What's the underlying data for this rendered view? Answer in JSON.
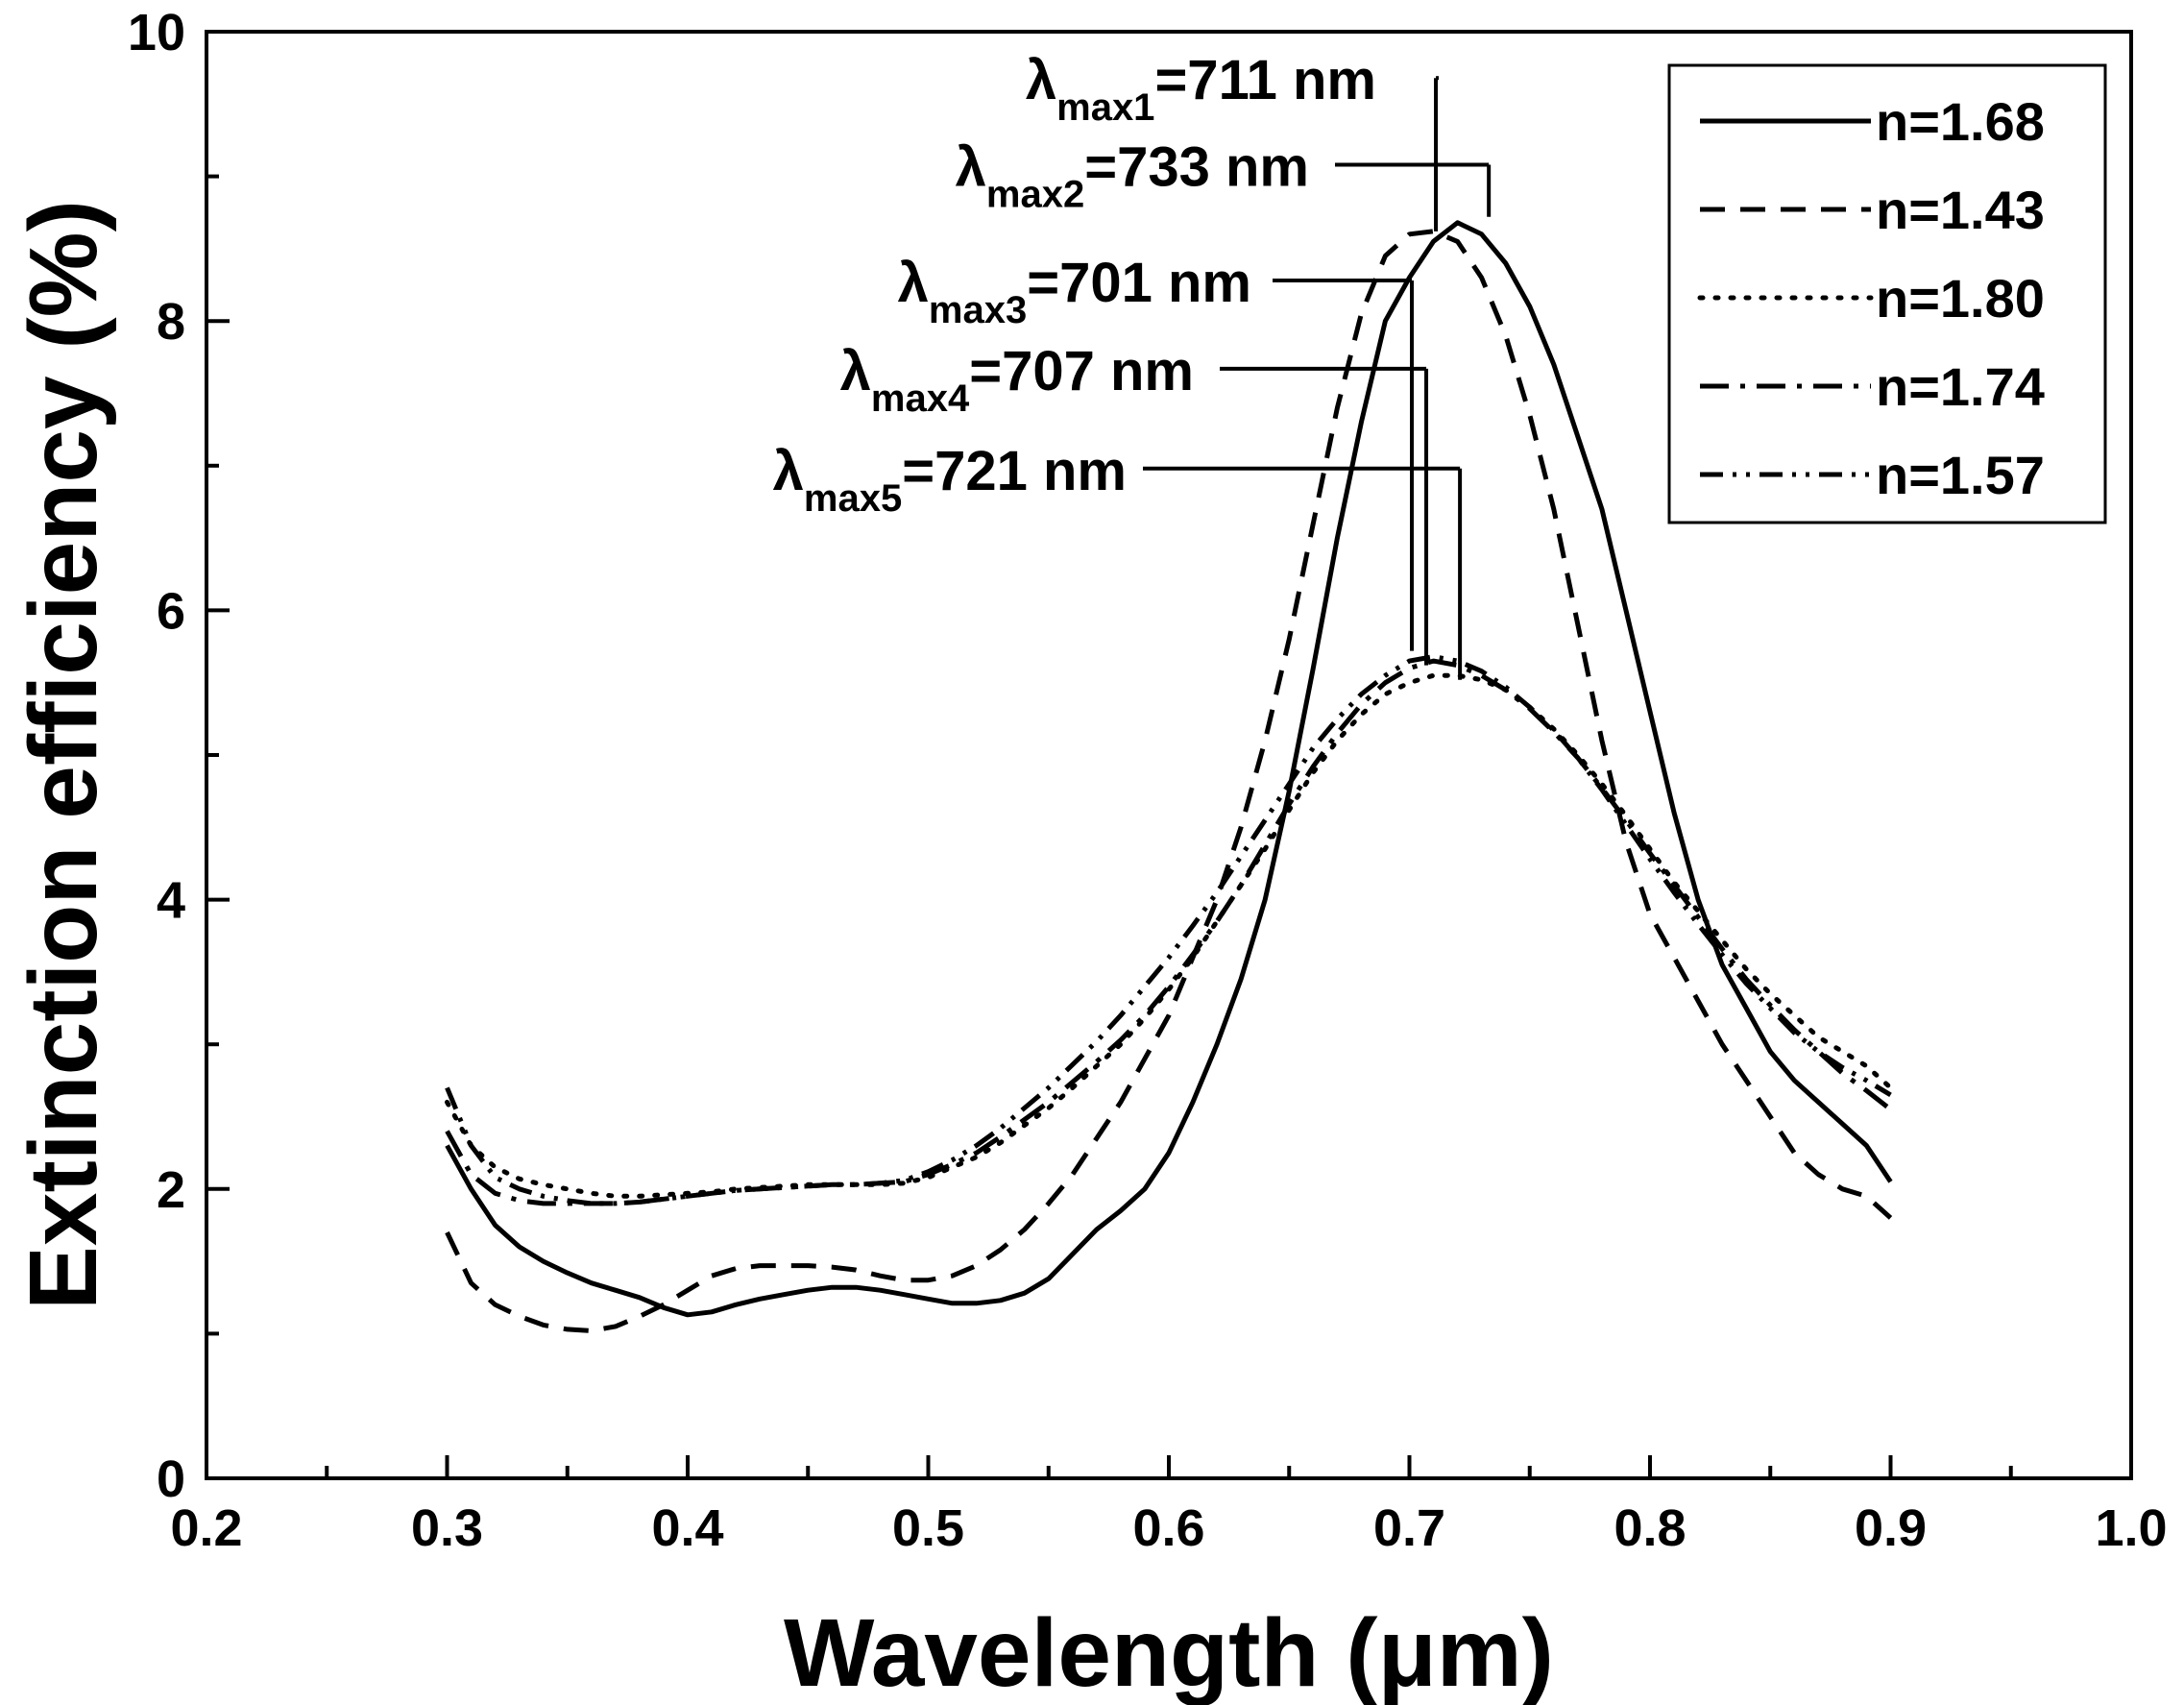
{
  "chart_data": {
    "type": "line",
    "xlabel": "Wavelength (μm)",
    "ylabel": "Extinction efficiency (%)",
    "xlim": [
      0.2,
      1.0
    ],
    "ylim": [
      0,
      10
    ],
    "xticks": [
      "0.2",
      "0.3",
      "0.4",
      "0.5",
      "0.6",
      "0.7",
      "0.8",
      "0.9",
      "1.0"
    ],
    "yticks": [
      "0",
      "2",
      "4",
      "6",
      "8",
      "10"
    ],
    "grid": false,
    "legend_position": "top-right",
    "series": [
      {
        "name": "n=1.68",
        "style": "solid",
        "x": [
          0.3,
          0.31,
          0.32,
          0.33,
          0.34,
          0.35,
          0.36,
          0.37,
          0.38,
          0.39,
          0.4,
          0.41,
          0.42,
          0.43,
          0.44,
          0.45,
          0.46,
          0.47,
          0.48,
          0.49,
          0.5,
          0.51,
          0.52,
          0.53,
          0.54,
          0.55,
          0.56,
          0.57,
          0.58,
          0.59,
          0.6,
          0.61,
          0.62,
          0.63,
          0.64,
          0.65,
          0.66,
          0.67,
          0.68,
          0.69,
          0.7,
          0.71,
          0.72,
          0.73,
          0.74,
          0.75,
          0.76,
          0.77,
          0.78,
          0.79,
          0.8,
          0.81,
          0.82,
          0.83,
          0.84,
          0.85,
          0.86,
          0.87,
          0.88,
          0.89,
          0.9
        ],
        "y": [
          2.3,
          2.0,
          1.75,
          1.6,
          1.5,
          1.42,
          1.35,
          1.3,
          1.25,
          1.18,
          1.13,
          1.15,
          1.2,
          1.24,
          1.27,
          1.3,
          1.32,
          1.32,
          1.3,
          1.27,
          1.24,
          1.21,
          1.21,
          1.23,
          1.28,
          1.38,
          1.55,
          1.72,
          1.85,
          2.0,
          2.25,
          2.6,
          3.0,
          3.45,
          4.0,
          4.75,
          5.6,
          6.5,
          7.3,
          8.0,
          8.3,
          8.55,
          8.68,
          8.6,
          8.4,
          8.1,
          7.7,
          7.2,
          6.7,
          6.0,
          5.3,
          4.6,
          4.0,
          3.55,
          3.25,
          2.95,
          2.75,
          2.6,
          2.45,
          2.3,
          2.05
        ]
      },
      {
        "name": "n=1.43",
        "style": "dashed",
        "x": [
          0.3,
          0.31,
          0.32,
          0.33,
          0.34,
          0.35,
          0.36,
          0.37,
          0.38,
          0.39,
          0.4,
          0.41,
          0.42,
          0.43,
          0.44,
          0.45,
          0.46,
          0.47,
          0.48,
          0.49,
          0.5,
          0.51,
          0.52,
          0.53,
          0.54,
          0.55,
          0.56,
          0.57,
          0.58,
          0.59,
          0.6,
          0.61,
          0.62,
          0.63,
          0.64,
          0.65,
          0.66,
          0.67,
          0.68,
          0.69,
          0.7,
          0.71,
          0.72,
          0.73,
          0.74,
          0.75,
          0.76,
          0.77,
          0.78,
          0.79,
          0.8,
          0.81,
          0.82,
          0.83,
          0.84,
          0.85,
          0.86,
          0.87,
          0.88,
          0.89,
          0.9
        ],
        "y": [
          1.7,
          1.35,
          1.2,
          1.12,
          1.06,
          1.03,
          1.02,
          1.05,
          1.12,
          1.2,
          1.3,
          1.4,
          1.45,
          1.47,
          1.47,
          1.47,
          1.46,
          1.44,
          1.4,
          1.37,
          1.37,
          1.4,
          1.47,
          1.58,
          1.72,
          1.9,
          2.1,
          2.35,
          2.6,
          2.9,
          3.2,
          3.6,
          4.0,
          4.5,
          5.1,
          5.8,
          6.6,
          7.4,
          8.05,
          8.45,
          8.6,
          8.62,
          8.55,
          8.3,
          7.9,
          7.35,
          6.7,
          5.9,
          5.1,
          4.4,
          3.9,
          3.6,
          3.3,
          3.0,
          2.75,
          2.5,
          2.25,
          2.1,
          2.0,
          1.95,
          1.8
        ]
      },
      {
        "name": "n=1.80",
        "style": "dotted",
        "x": [
          0.3,
          0.31,
          0.32,
          0.33,
          0.34,
          0.35,
          0.36,
          0.37,
          0.38,
          0.39,
          0.4,
          0.41,
          0.42,
          0.43,
          0.44,
          0.45,
          0.46,
          0.47,
          0.48,
          0.49,
          0.5,
          0.51,
          0.52,
          0.53,
          0.54,
          0.55,
          0.56,
          0.57,
          0.58,
          0.59,
          0.6,
          0.61,
          0.62,
          0.63,
          0.64,
          0.65,
          0.66,
          0.67,
          0.68,
          0.69,
          0.7,
          0.71,
          0.72,
          0.73,
          0.74,
          0.75,
          0.76,
          0.77,
          0.78,
          0.79,
          0.8,
          0.81,
          0.82,
          0.83,
          0.84,
          0.85,
          0.86,
          0.87,
          0.88,
          0.89,
          0.9
        ],
        "y": [
          2.6,
          2.3,
          2.15,
          2.07,
          2.03,
          2.0,
          1.97,
          1.95,
          1.95,
          1.96,
          1.97,
          1.98,
          2.0,
          2.01,
          2.02,
          2.03,
          2.03,
          2.03,
          2.03,
          2.04,
          2.08,
          2.15,
          2.22,
          2.32,
          2.44,
          2.56,
          2.7,
          2.85,
          3.0,
          3.18,
          3.38,
          3.6,
          3.85,
          4.1,
          4.35,
          4.62,
          4.88,
          5.1,
          5.28,
          5.42,
          5.5,
          5.55,
          5.55,
          5.52,
          5.45,
          5.33,
          5.18,
          5.0,
          4.8,
          4.58,
          4.35,
          4.12,
          3.92,
          3.72,
          3.52,
          3.35,
          3.2,
          3.05,
          2.95,
          2.85,
          2.7
        ]
      },
      {
        "name": "n=1.74",
        "style": "dashdot",
        "x": [
          0.3,
          0.31,
          0.32,
          0.33,
          0.34,
          0.35,
          0.36,
          0.37,
          0.38,
          0.39,
          0.4,
          0.41,
          0.42,
          0.43,
          0.44,
          0.45,
          0.46,
          0.47,
          0.48,
          0.49,
          0.5,
          0.51,
          0.52,
          0.53,
          0.54,
          0.55,
          0.56,
          0.57,
          0.58,
          0.59,
          0.6,
          0.61,
          0.62,
          0.63,
          0.64,
          0.65,
          0.66,
          0.67,
          0.68,
          0.69,
          0.7,
          0.71,
          0.72,
          0.73,
          0.74,
          0.75,
          0.76,
          0.77,
          0.78,
          0.79,
          0.8,
          0.81,
          0.82,
          0.83,
          0.84,
          0.85,
          0.86,
          0.87,
          0.88,
          0.89,
          0.9
        ],
        "y": [
          2.4,
          2.1,
          1.97,
          1.92,
          1.9,
          1.9,
          1.9,
          1.9,
          1.91,
          1.93,
          1.95,
          1.97,
          1.99,
          2.0,
          2.01,
          2.02,
          2.03,
          2.03,
          2.04,
          2.05,
          2.1,
          2.17,
          2.25,
          2.36,
          2.48,
          2.6,
          2.74,
          2.88,
          3.03,
          3.2,
          3.4,
          3.62,
          3.85,
          4.1,
          4.38,
          4.66,
          4.92,
          5.15,
          5.35,
          5.5,
          5.6,
          5.65,
          5.62,
          5.55,
          5.45,
          5.32,
          5.16,
          4.98,
          4.77,
          4.55,
          4.32,
          4.1,
          3.88,
          3.66,
          3.45,
          3.27,
          3.1,
          2.95,
          2.8,
          2.68,
          2.55
        ]
      },
      {
        "name": "n=1.57",
        "style": "dashdotdot",
        "x": [
          0.3,
          0.31,
          0.32,
          0.33,
          0.34,
          0.35,
          0.36,
          0.37,
          0.38,
          0.39,
          0.4,
          0.41,
          0.42,
          0.43,
          0.44,
          0.45,
          0.46,
          0.47,
          0.48,
          0.49,
          0.5,
          0.51,
          0.52,
          0.53,
          0.54,
          0.55,
          0.56,
          0.57,
          0.58,
          0.59,
          0.6,
          0.61,
          0.62,
          0.63,
          0.64,
          0.65,
          0.66,
          0.67,
          0.68,
          0.69,
          0.7,
          0.71,
          0.72,
          0.73,
          0.74,
          0.75,
          0.76,
          0.77,
          0.78,
          0.79,
          0.8,
          0.81,
          0.82,
          0.83,
          0.84,
          0.85,
          0.86,
          0.87,
          0.88,
          0.89,
          0.9
        ],
        "y": [
          2.7,
          2.3,
          2.08,
          2.0,
          1.95,
          1.92,
          1.9,
          1.9,
          1.91,
          1.93,
          1.95,
          1.97,
          1.99,
          2.0,
          2.01,
          2.02,
          2.03,
          2.03,
          2.04,
          2.06,
          2.12,
          2.2,
          2.3,
          2.42,
          2.56,
          2.7,
          2.86,
          3.02,
          3.2,
          3.4,
          3.6,
          3.82,
          4.05,
          4.3,
          4.55,
          4.8,
          5.05,
          5.25,
          5.42,
          5.55,
          5.65,
          5.68,
          5.65,
          5.58,
          5.47,
          5.33,
          5.17,
          4.98,
          4.76,
          4.52,
          4.28,
          4.05,
          3.83,
          3.62,
          3.42,
          3.25,
          3.08,
          2.95,
          2.84,
          2.75,
          2.65
        ]
      }
    ],
    "annotations": [
      {
        "label_main": "λ",
        "label_sub": "max1",
        "label_value": "=711 nm",
        "text_x": 0.711,
        "text_y": 9.68,
        "peak_x": 0.711,
        "peak_y": 8.62
      },
      {
        "label_main": "λ",
        "label_sub": "max2",
        "label_value": "=733 nm",
        "text_x": 0.733,
        "text_y": 9.08,
        "peak_x": 0.733,
        "peak_y": 8.72
      },
      {
        "label_main": "λ",
        "label_sub": "max3",
        "label_value": "=701 nm",
        "text_x": 0.701,
        "text_y": 8.28,
        "peak_x": 0.701,
        "peak_y": 5.72
      },
      {
        "label_main": "λ",
        "label_sub": "max4",
        "label_value": "=707 nm",
        "text_x": 0.707,
        "text_y": 7.67,
        "peak_x": 0.707,
        "peak_y": 5.62
      },
      {
        "label_main": "λ",
        "label_sub": "max5",
        "label_value": "=721 nm",
        "text_x": 0.721,
        "text_y": 6.98,
        "peak_x": 0.721,
        "peak_y": 5.52
      }
    ]
  }
}
